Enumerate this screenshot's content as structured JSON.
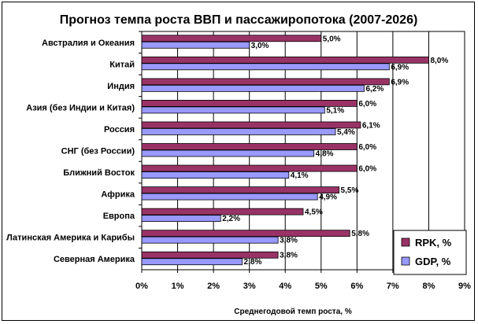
{
  "chart_data": {
    "type": "bar",
    "orientation": "horizontal",
    "title": "Прогноз темпа роста ВВП и пассажиропотока (2007-2026)",
    "xlabel": "Среднегодовой темп роста, %",
    "ylabel": "",
    "xlim": [
      0,
      9
    ],
    "ticks": [
      "0%",
      "1%",
      "2%",
      "3%",
      "4%",
      "5%",
      "6%",
      "7%",
      "8%",
      "9%"
    ],
    "grid": true,
    "legend_position": "bottom-right",
    "categories": [
      "Австралия и Океания",
      "Китай",
      "Индия",
      "Азия (без Индии и Китая)",
      "Россия",
      "СНГ (без России)",
      "Ближний Восток",
      "Африка",
      "Европа",
      "Латинская Америка и Карибы",
      "Северная Америка"
    ],
    "series": [
      {
        "name": "RPK, %",
        "color": "#993366",
        "values": [
          5.0,
          8.0,
          6.9,
          6.0,
          6.1,
          6.0,
          6.0,
          5.5,
          4.5,
          5.8,
          3.8
        ],
        "labels": [
          "5,0%",
          "8,0%",
          "6,9%",
          "6,0%",
          "6,1%",
          "6,0%",
          "6,0%",
          "5,5%",
          "4,5%",
          "5,8%",
          "3,8%"
        ]
      },
      {
        "name": "GDP, %",
        "color": "#9999ff",
        "values": [
          3.0,
          6.9,
          6.2,
          5.1,
          5.4,
          4.8,
          4.1,
          4.9,
          2.2,
          3.8,
          2.8
        ],
        "labels": [
          "3,0%",
          "6,9%",
          "6,2%",
          "5,1%",
          "5,4%",
          "4,8%",
          "4,1%",
          "4,9%",
          "2,2%",
          "3,8%",
          "2,8%"
        ]
      }
    ]
  }
}
